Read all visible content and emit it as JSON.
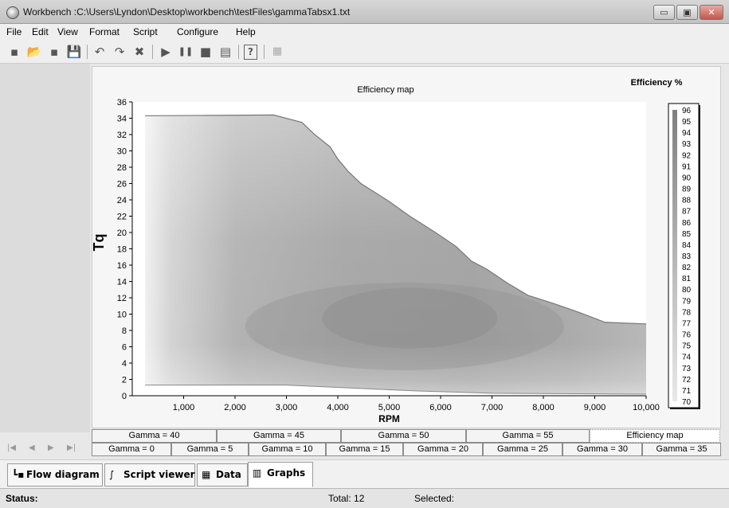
{
  "window": {
    "title": "Workbench :C:\\Users\\Lyndon\\Desktop\\workbench\\testFiles\\gammaTabsx1.txt",
    "controls": [
      "▭",
      "▣",
      "✕"
    ]
  },
  "menu": [
    "File",
    "Edit",
    "View",
    "Format",
    "Script",
    "Configure",
    "Help"
  ],
  "toolbar": {
    "icons": [
      "new-icon",
      "open-icon",
      "export-icon",
      "save-icon",
      "undo-icon",
      "redo-icon",
      "delete-icon",
      "run-icon",
      "pause-icon",
      "stop-icon",
      "chart-icon",
      "help-icon",
      "grid-icon"
    ],
    "glyphs": [
      "▪",
      "📂",
      "▪",
      "💾",
      "↶",
      "↷",
      "✖",
      "▶",
      "❚❚",
      "■",
      "▤",
      "?",
      "▦"
    ]
  },
  "chart_data": {
    "type": "heatmap",
    "title": "Efficiency map",
    "xlabel": "RPM",
    "ylabel": "Tq",
    "xlim": [
      0,
      10000
    ],
    "ylim": [
      0,
      36
    ],
    "x_ticks": [
      "1,000",
      "2,000",
      "3,000",
      "4,000",
      "5,000",
      "6,000",
      "7,000",
      "8,000",
      "9,000",
      "10,000"
    ],
    "y_ticks": [
      "0",
      "2",
      "4",
      "6",
      "8",
      "10",
      "12",
      "14",
      "16",
      "18",
      "20",
      "22",
      "24",
      "26",
      "28",
      "30",
      "32",
      "34",
      "36"
    ],
    "boundary": [
      [
        250,
        34.3
      ],
      [
        2750,
        34.4
      ],
      [
        3300,
        33.5
      ],
      [
        3550,
        32.0
      ],
      [
        3850,
        30.5
      ],
      [
        4000,
        29.0
      ],
      [
        4200,
        27.5
      ],
      [
        4450,
        26.0
      ],
      [
        4700,
        25.0
      ],
      [
        5000,
        23.8
      ],
      [
        5400,
        22.0
      ],
      [
        5900,
        20.0
      ],
      [
        6300,
        18.3
      ],
      [
        6600,
        16.5
      ],
      [
        6900,
        15.5
      ],
      [
        7300,
        13.8
      ],
      [
        7700,
        12.3
      ],
      [
        8200,
        11.3
      ],
      [
        8700,
        10.2
      ],
      [
        9200,
        9.0
      ],
      [
        10000,
        8.8
      ]
    ],
    "lower_boundary": [
      [
        250,
        1.3
      ],
      [
        3000,
        1.3
      ],
      [
        5500,
        0.6
      ],
      [
        7000,
        0.3
      ],
      [
        10000,
        0.2
      ]
    ],
    "legend": {
      "title": "Efficiency %",
      "values": [
        96,
        95,
        94,
        93,
        92,
        91,
        90,
        89,
        88,
        87,
        86,
        85,
        84,
        83,
        82,
        81,
        80,
        79,
        78,
        77,
        76,
        75,
        74,
        73,
        72,
        71,
        70
      ]
    },
    "grid": false
  },
  "graph_tabs": {
    "row1": [
      "Gamma = 40",
      "Gamma = 45",
      "Gamma = 50",
      "Gamma = 55",
      "Efficiency map"
    ],
    "row2": [
      "Gamma = 0",
      "Gamma = 5",
      "Gamma = 10",
      "Gamma = 15",
      "Gamma = 20",
      "Gamma = 25",
      "Gamma = 30",
      "Gamma = 35"
    ],
    "active": "Efficiency map"
  },
  "nav_arrows": [
    "|◀",
    "◀",
    "▶",
    "▶|"
  ],
  "view_tabs": [
    {
      "label": "Flow diagram",
      "icon": "flow-diagram-icon",
      "glyph": "┗▪"
    },
    {
      "label": "Script viewer",
      "icon": "script-icon",
      "glyph": "∫"
    },
    {
      "label": "Data",
      "icon": "data-grid-icon",
      "glyph": "▦"
    },
    {
      "label": "Graphs",
      "icon": "graphs-icon",
      "glyph": "▥"
    }
  ],
  "status": {
    "label": "Status:",
    "total": "Total: 12",
    "selected": "Selected:"
  }
}
